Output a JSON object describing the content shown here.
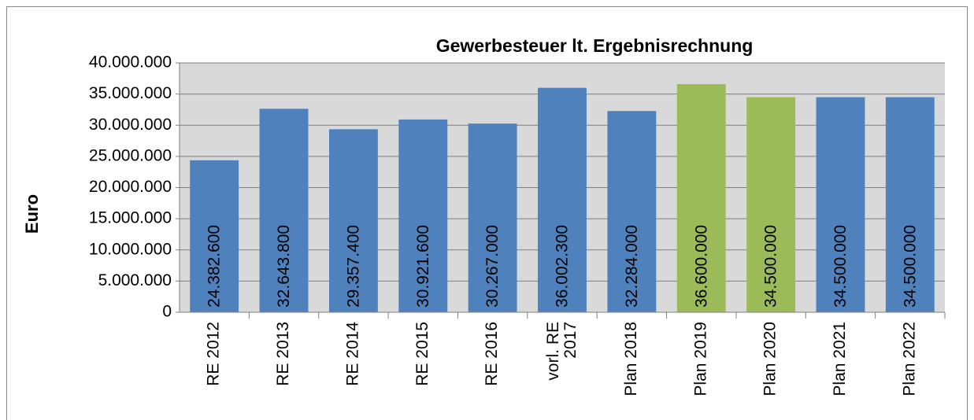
{
  "chart_data": {
    "type": "bar",
    "title": "Gewerbesteuer  lt. Ergebnisrechnung",
    "y_label": "Euro",
    "categories": [
      "RE 2012",
      "RE 2013",
      "RE 2014",
      "RE 2015",
      "RE 2016",
      "vorl. RE\n2017",
      "Plan 2018",
      "Plan 2019",
      "Plan 2020",
      "Plan 2021",
      "Plan 2022"
    ],
    "values": [
      24382600,
      32643800,
      29357400,
      30921600,
      30267000,
      36002300,
      32284000,
      36600000,
      34500000,
      34500000,
      34500000
    ],
    "value_labels": [
      "24.382.600",
      "32.643.800",
      "29.357.400",
      "30.921.600",
      "30.267.000",
      "36.002.300",
      "32.284.000",
      "36.600.000",
      "34.500.000",
      "34.500.000",
      "34.500.000"
    ],
    "colors": [
      "#4f81bd",
      "#4f81bd",
      "#4f81bd",
      "#4f81bd",
      "#4f81bd",
      "#4f81bd",
      "#4f81bd",
      "#9bbb59",
      "#9bbb59",
      "#4f81bd",
      "#4f81bd"
    ],
    "ylim": [
      0,
      40000000
    ],
    "yticks": [
      0,
      {
        "value": 5000000,
        "label": "5.000.000"
      },
      {
        "value": 10000000,
        "label": "10.000.000"
      },
      {
        "value": 15000000,
        "label": "15.000.000"
      },
      {
        "value": 20000000,
        "label": "20.000.000"
      },
      {
        "value": 25000000,
        "label": "25.000.000"
      },
      {
        "value": 30000000,
        "label": "30.000.000"
      },
      {
        "value": 35000000,
        "label": "35.000.000"
      },
      {
        "value": 40000000,
        "label": "40.000.000"
      }
    ],
    "grid": true
  }
}
